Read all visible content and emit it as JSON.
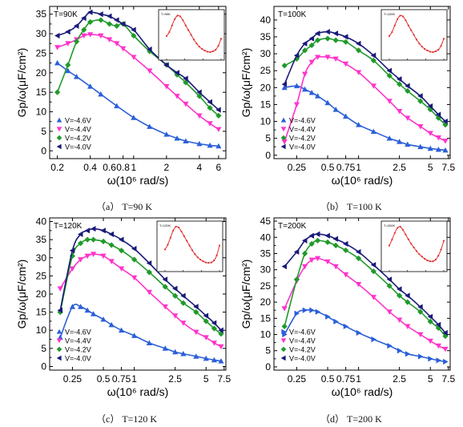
{
  "chart_data": [
    {
      "type": "scatter",
      "panel_label": "T=90K",
      "caption": "（a） T=90 K",
      "xlabel": "ω(10⁶ rad/s)",
      "ylabel": "Gp/ω(μF/cm²)",
      "xscale": "log",
      "xlim": [
        0.17,
        7.0
      ],
      "ylim": [
        -2,
        37
      ],
      "xticks": [
        0.2,
        0.4,
        0.6,
        0.8,
        1,
        2,
        4,
        6
      ],
      "xtick_labels": [
        "0.2",
        "0.4",
        "0.6",
        "0.8",
        "1",
        "2",
        "4",
        "6"
      ],
      "yticks": [
        0,
        5,
        10,
        15,
        20,
        25,
        30,
        35
      ],
      "legend": "lower-left",
      "series": [
        {
          "name": "V=-4.6V",
          "color": "#2b5fd9",
          "marker": "triangle-up",
          "x": [
            0.2,
            0.25,
            0.3,
            0.4,
            0.5,
            0.7,
            1.0,
            1.4,
            2.0,
            2.5,
            3.0,
            4.0,
            5.0,
            6.0
          ],
          "y": [
            22.5,
            20.5,
            19,
            16.5,
            14.5,
            11.5,
            8.5,
            6.2,
            4.2,
            3.2,
            2.5,
            1.8,
            1.4,
            1.2
          ]
        },
        {
          "name": "V=-4.4V",
          "color": "#ff33cc",
          "marker": "triangle-down",
          "x": [
            0.2,
            0.25,
            0.3,
            0.35,
            0.4,
            0.5,
            0.6,
            0.7,
            0.8,
            1.0,
            1.4,
            2.0,
            2.5,
            3.0,
            4.0,
            5.0,
            6.0
          ],
          "y": [
            26.5,
            27.5,
            28.5,
            29.5,
            29.8,
            29.5,
            28.5,
            27.5,
            26.2,
            24,
            20.5,
            16.5,
            14,
            12,
            9,
            7,
            5.5
          ]
        },
        {
          "name": "V=-4.2V",
          "color": "#1f9a2a",
          "marker": "diamond",
          "x": [
            0.2,
            0.25,
            0.3,
            0.35,
            0.4,
            0.5,
            0.6,
            0.7,
            0.8,
            1.0,
            1.4,
            2.0,
            2.5,
            3.0,
            4.0,
            5.0,
            6.0
          ],
          "y": [
            15,
            22,
            28,
            31,
            33,
            33.5,
            32.5,
            32,
            32.5,
            29.5,
            25.5,
            22,
            19.5,
            17.5,
            14,
            11,
            9
          ]
        },
        {
          "name": "V=-4.0V",
          "color": "#1a1a7a",
          "marker": "triangle-left",
          "x": [
            0.2,
            0.25,
            0.3,
            0.35,
            0.4,
            0.5,
            0.6,
            0.7,
            0.8,
            1.0,
            1.4,
            2.0,
            2.5,
            3.0,
            4.0,
            5.0,
            6.0
          ],
          "y": [
            29.5,
            30.5,
            32,
            34,
            35.5,
            35,
            34.5,
            33.5,
            32.5,
            31,
            26,
            22,
            20,
            18.5,
            15,
            12.5,
            10.5
          ]
        }
      ],
      "inset": {
        "label": "T=90K",
        "y": [
          0.45,
          0.55,
          0.72,
          0.88,
          0.97,
          0.95,
          0.85,
          0.72,
          0.6,
          0.48,
          0.36,
          0.26,
          0.18,
          0.12,
          0.08,
          0.05,
          0.04,
          0.06,
          0.1,
          0.2,
          0.38
        ]
      }
    },
    {
      "type": "scatter",
      "panel_label": "T=100K",
      "caption": "（b） T=100 K",
      "xlabel": "ω(10⁶ rad/s)",
      "ylabel": "Gp/ω(μF/cm²)",
      "xscale": "log",
      "xlim": [
        0.15,
        7.8
      ],
      "ylim": [
        -1,
        44
      ],
      "xticks": [
        0.25,
        0.5,
        0.75,
        1,
        2.5,
        5,
        7.5
      ],
      "xtick_labels": [
        "0.25",
        "0.5",
        "0.75",
        "1",
        "2.5",
        "5",
        "7.5"
      ],
      "yticks": [
        0,
        5,
        10,
        15,
        20,
        25,
        30,
        35,
        40
      ],
      "legend": "lower-left",
      "series": [
        {
          "name": "V=-4.6V",
          "color": "#2b5fd9",
          "marker": "triangle-up",
          "x": [
            0.19,
            0.25,
            0.3,
            0.35,
            0.4,
            0.5,
            0.6,
            0.75,
            1.0,
            1.4,
            2.0,
            2.5,
            3.0,
            4.0,
            5.0,
            6.0,
            7.0
          ],
          "y": [
            20,
            20.5,
            19.5,
            18.5,
            17.5,
            15.5,
            13.5,
            11.5,
            9,
            7,
            5,
            4,
            3.2,
            2.5,
            2,
            1.7,
            1.5
          ]
        },
        {
          "name": "V=-4.4V",
          "color": "#ff33cc",
          "marker": "triangle-down",
          "x": [
            0.19,
            0.25,
            0.3,
            0.35,
            0.4,
            0.5,
            0.6,
            0.75,
            1.0,
            1.4,
            2.0,
            2.5,
            3.0,
            4.0,
            5.0,
            6.0,
            7.0
          ],
          "y": [
            4,
            15,
            24,
            27.5,
            29,
            29,
            28.5,
            27,
            24.5,
            20.5,
            16,
            13,
            11,
            8.5,
            6.5,
            5.2,
            4.2
          ]
        },
        {
          "name": "V=-4.2V",
          "color": "#1f9a2a",
          "marker": "diamond",
          "x": [
            0.19,
            0.25,
            0.3,
            0.35,
            0.4,
            0.5,
            0.6,
            0.75,
            1.0,
            1.4,
            2.0,
            2.5,
            3.0,
            4.0,
            5.0,
            6.0,
            7.0
          ],
          "y": [
            26.5,
            28.5,
            31,
            32.5,
            34,
            34.5,
            34,
            33.5,
            31,
            28,
            23.5,
            21,
            19,
            16,
            13.5,
            11,
            9
          ]
        },
        {
          "name": "V=-4.0V",
          "color": "#1a1a7a",
          "marker": "triangle-left",
          "x": [
            0.19,
            0.25,
            0.3,
            0.35,
            0.4,
            0.5,
            0.6,
            0.75,
            1.0,
            1.4,
            2.0,
            2.5,
            3.0,
            4.0,
            5.0,
            6.0,
            7.0
          ],
          "y": [
            21,
            29.5,
            33,
            34.5,
            36,
            36.5,
            36,
            35,
            33,
            29.5,
            25,
            22.5,
            20.5,
            17.5,
            14.5,
            12,
            10
          ]
        }
      ],
      "inset": {
        "label": "T=100K",
        "y": [
          0.45,
          0.55,
          0.72,
          0.88,
          0.97,
          0.95,
          0.85,
          0.72,
          0.6,
          0.48,
          0.36,
          0.26,
          0.18,
          0.12,
          0.08,
          0.05,
          0.04,
          0.06,
          0.1,
          0.2,
          0.38
        ]
      }
    },
    {
      "type": "scatter",
      "panel_label": "T=120K",
      "caption": "（c） T=120 K",
      "xlabel": "ω(10⁶ rad/s)",
      "ylabel": "Gp/ω(μF/cm²)",
      "xscale": "log",
      "xlim": [
        0.15,
        7.8
      ],
      "ylim": [
        -1,
        41
      ],
      "xticks": [
        0.25,
        0.5,
        0.75,
        1,
        2.5,
        5,
        7.5
      ],
      "xtick_labels": [
        "0.25",
        "0.5",
        "0.75",
        "1",
        "2.5",
        "5",
        "7.5"
      ],
      "yticks": [
        0,
        5,
        10,
        15,
        20,
        25,
        30,
        35,
        40
      ],
      "legend": "lower-left",
      "series": [
        {
          "name": "V=-4.6V",
          "color": "#2b5fd9",
          "marker": "triangle-up",
          "x": [
            0.19,
            0.25,
            0.3,
            0.35,
            0.4,
            0.5,
            0.6,
            0.75,
            1.0,
            1.4,
            2.0,
            2.5,
            3.0,
            4.0,
            5.0,
            6.0,
            7.0
          ],
          "y": [
            8,
            16.5,
            16.5,
            15.5,
            14.5,
            13,
            11.5,
            10,
            8.5,
            6.5,
            5,
            4,
            3.5,
            2.8,
            2.2,
            1.8,
            1.5
          ]
        },
        {
          "name": "V=-4.4V",
          "color": "#ff33cc",
          "marker": "triangle-down",
          "x": [
            0.19,
            0.25,
            0.3,
            0.35,
            0.4,
            0.5,
            0.6,
            0.75,
            1.0,
            1.4,
            2.0,
            2.5,
            3.0,
            4.0,
            5.0,
            6.0,
            7.0
          ],
          "y": [
            21.5,
            27,
            29.5,
            30.5,
            31,
            30.5,
            29,
            27,
            24.5,
            20.5,
            16.5,
            14,
            12,
            9.5,
            8,
            6.5,
            5.5
          ]
        },
        {
          "name": "V=-4.2V",
          "color": "#1f9a2a",
          "marker": "diamond",
          "x": [
            0.19,
            0.25,
            0.3,
            0.35,
            0.4,
            0.5,
            0.6,
            0.75,
            1.0,
            1.4,
            2.0,
            2.5,
            3.0,
            4.0,
            5.0,
            6.0,
            7.0
          ],
          "y": [
            15,
            30.5,
            34,
            35,
            35,
            34.5,
            33.5,
            32,
            29.5,
            26,
            22,
            19.5,
            17.5,
            15,
            12.5,
            10.5,
            9
          ]
        },
        {
          "name": "V=-4.0V",
          "color": "#1a1a7a",
          "marker": "triangle-left",
          "x": [
            0.19,
            0.25,
            0.3,
            0.35,
            0.4,
            0.5,
            0.6,
            0.75,
            1.0,
            1.4,
            2.0,
            2.5,
            3.0,
            4.0,
            5.0,
            6.0,
            7.0
          ],
          "y": [
            15.5,
            32,
            36.5,
            37.5,
            38,
            37.5,
            36.5,
            35,
            32.5,
            28.5,
            24,
            21.5,
            19.5,
            16.5,
            14,
            12,
            10
          ]
        }
      ],
      "inset": {
        "label": "T=120K",
        "y": [
          0.4,
          0.52,
          0.7,
          0.88,
          0.98,
          0.96,
          0.86,
          0.74,
          0.62,
          0.5,
          0.38,
          0.28,
          0.2,
          0.14,
          0.1,
          0.07,
          0.06,
          0.07,
          0.12,
          0.25,
          0.5
        ]
      }
    },
    {
      "type": "scatter",
      "panel_label": "T=200K",
      "caption": "（d） T=200 K",
      "xlabel": "ω(10⁶ rad/s)",
      "ylabel": "Gp/ω(μF/cm²)",
      "xscale": "log",
      "xlim": [
        0.15,
        7.8
      ],
      "ylim": [
        -1,
        46
      ],
      "xticks": [
        0.25,
        0.5,
        0.75,
        1,
        2.5,
        5,
        7.5
      ],
      "xtick_labels": [
        "0.25",
        "0.5",
        "0.75",
        "1",
        "2.5",
        "5",
        "7.5"
      ],
      "yticks": [
        0,
        5,
        10,
        15,
        20,
        25,
        30,
        35,
        40,
        45
      ],
      "legend": "lower-left",
      "series": [
        {
          "name": "V=-4.6V",
          "color": "#2b5fd9",
          "marker": "triangle-right",
          "x": [
            0.19,
            0.25,
            0.3,
            0.35,
            0.4,
            0.5,
            0.6,
            0.75,
            1.0,
            1.4,
            2.0,
            2.5,
            3.0,
            4.0,
            5.0,
            6.0,
            7.0
          ],
          "y": [
            10,
            16.5,
            17.5,
            17.5,
            17,
            15.5,
            14,
            12.5,
            10.5,
            8.5,
            6.5,
            5,
            4,
            3.2,
            2.5,
            2,
            1.6
          ]
        },
        {
          "name": "V=-4.4V",
          "color": "#ff33cc",
          "marker": "triangle-down",
          "x": [
            0.19,
            0.25,
            0.3,
            0.35,
            0.4,
            0.5,
            0.6,
            0.75,
            1.0,
            1.4,
            2.0,
            2.5,
            3.0,
            4.0,
            5.0,
            6.0,
            7.0
          ],
          "y": [
            18,
            26.5,
            31,
            33,
            33.5,
            32.5,
            31,
            28.5,
            25.5,
            21.5,
            17,
            14.5,
            12.5,
            10,
            8,
            6.5,
            5.5
          ]
        },
        {
          "name": "V=-4.2V",
          "color": "#1f9a2a",
          "marker": "diamond",
          "x": [
            0.19,
            0.25,
            0.3,
            0.35,
            0.4,
            0.5,
            0.6,
            0.75,
            1.0,
            1.4,
            2.0,
            2.5,
            3.0,
            4.0,
            5.0,
            6.0,
            7.0
          ],
          "y": [
            12.5,
            27,
            35,
            38,
            39,
            38.5,
            37.5,
            36,
            33.5,
            29.5,
            25,
            22,
            20,
            17,
            14,
            12,
            9.5
          ]
        },
        {
          "name": "V=-4.0V",
          "color": "#1a1a7a",
          "marker": "triangle-left",
          "x": [
            0.19,
            0.25,
            0.3,
            0.35,
            0.4,
            0.5,
            0.6,
            0.75,
            1.0,
            1.4,
            2.0,
            2.5,
            3.0,
            4.0,
            5.0,
            6.0,
            7.0
          ],
          "y": [
            31,
            35.5,
            39,
            40.5,
            41,
            40.5,
            39.5,
            38,
            35.5,
            31.5,
            27,
            24,
            22,
            18.5,
            15.5,
            13,
            10.5
          ]
        }
      ],
      "inset": {
        "label": "T=200K",
        "y": [
          0.5,
          0.65,
          0.82,
          0.95,
          0.98,
          0.9,
          0.78,
          0.66,
          0.55,
          0.45,
          0.36,
          0.28,
          0.22,
          0.16,
          0.12,
          0.1,
          0.1,
          0.14,
          0.24,
          0.4,
          0.62
        ]
      }
    }
  ]
}
